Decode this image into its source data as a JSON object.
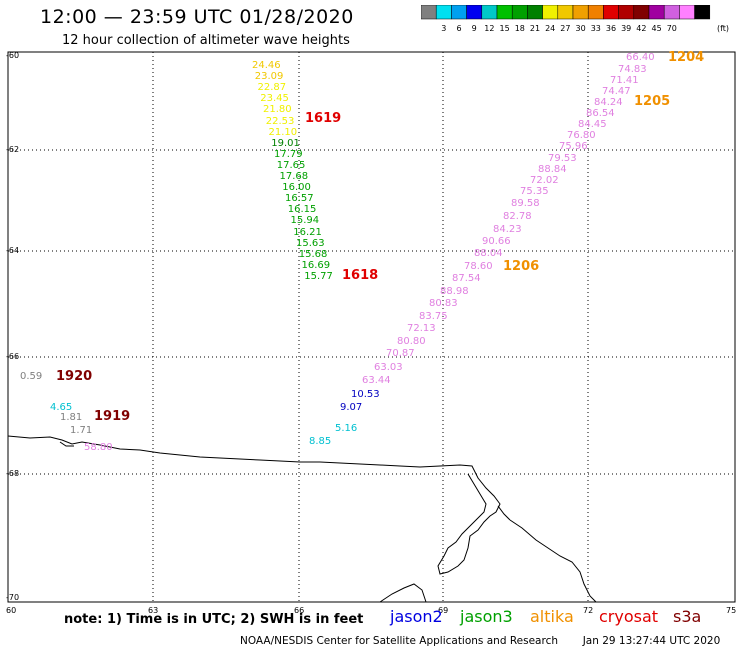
{
  "title": "12:00 — 23:59 UTC 01/28/2020",
  "subtitle": "12 hour collection of altimeter wave heights",
  "legend": {
    "colors": [
      "#808080",
      "#00e0f0",
      "#00a0f0",
      "#0000f0",
      "#00c8c8",
      "#00c000",
      "#00a000",
      "#008000",
      "#f0f000",
      "#f0c800",
      "#f0a000",
      "#f08000",
      "#e00000",
      "#b00000",
      "#800000",
      "#a000a0",
      "#d060e0",
      "#ff80ff",
      "#000000"
    ],
    "labels": [
      "3",
      "6",
      "9",
      "12",
      "15",
      "18",
      "21",
      "24",
      "27",
      "30",
      "33",
      "36",
      "39",
      "42",
      "45",
      "70"
    ],
    "unit": "(ft)"
  },
  "axes": {
    "y_labels": [
      "-60",
      "-62",
      "-64",
      "-66",
      "-68",
      "-70"
    ],
    "x_labels": [
      "60",
      "63",
      "66",
      "69",
      "72",
      "75"
    ]
  },
  "passes": [
    {
      "id": "1204",
      "color": "#f09000"
    },
    {
      "id": "1205",
      "color": "#f09000"
    },
    {
      "id": "1206",
      "color": "#f09000"
    },
    {
      "id": "1619",
      "color": "#e00000"
    },
    {
      "id": "1618",
      "color": "#e00000"
    },
    {
      "id": "1920",
      "color": "#800000"
    },
    {
      "id": "1919",
      "color": "#800000"
    }
  ],
  "measurements": [
    {
      "v": "24.46",
      "c": "#f0c800"
    },
    {
      "v": "23.09",
      "c": "#f0c800"
    },
    {
      "v": "22.87",
      "c": "#f0f000"
    },
    {
      "v": "23.45",
      "c": "#f0f000"
    },
    {
      "v": "21.80",
      "c": "#f0f000"
    },
    {
      "v": "22.53",
      "c": "#f0f000"
    },
    {
      "v": "21.10",
      "c": "#f0f000"
    },
    {
      "v": "19.01",
      "c": "#008000"
    },
    {
      "v": "17.79",
      "c": "#00a000"
    },
    {
      "v": "17.65",
      "c": "#00a000"
    },
    {
      "v": "17.68",
      "c": "#00a000"
    },
    {
      "v": "16.00",
      "c": "#00a000"
    },
    {
      "v": "16.57",
      "c": "#00a000"
    },
    {
      "v": "16.15",
      "c": "#00a000"
    },
    {
      "v": "15.94",
      "c": "#00a000"
    },
    {
      "v": "16.21",
      "c": "#00a000"
    },
    {
      "v": "15.63",
      "c": "#00a000"
    },
    {
      "v": "15.68",
      "c": "#00a000"
    },
    {
      "v": "16.69",
      "c": "#00a000"
    },
    {
      "v": "15.77",
      "c": "#00a000"
    },
    {
      "v": "66.40",
      "c": "#e080e0"
    },
    {
      "v": "74.83",
      "c": "#e080e0"
    },
    {
      "v": "71.41",
      "c": "#e080e0"
    },
    {
      "v": "74.47",
      "c": "#e080e0"
    },
    {
      "v": "84.24",
      "c": "#e080e0"
    },
    {
      "v": "86.54",
      "c": "#e080e0"
    },
    {
      "v": "84.45",
      "c": "#e080e0"
    },
    {
      "v": "76.80",
      "c": "#e080e0"
    },
    {
      "v": "75.96",
      "c": "#e080e0"
    },
    {
      "v": "79.53",
      "c": "#e080e0"
    },
    {
      "v": "88.84",
      "c": "#e080e0"
    },
    {
      "v": "72.02",
      "c": "#e080e0"
    },
    {
      "v": "75.35",
      "c": "#e080e0"
    },
    {
      "v": "89.58",
      "c": "#e080e0"
    },
    {
      "v": "82.78",
      "c": "#e080e0"
    },
    {
      "v": "84.23",
      "c": "#e080e0"
    },
    {
      "v": "90.66",
      "c": "#e080e0"
    },
    {
      "v": "88.04",
      "c": "#e080e0"
    },
    {
      "v": "78.60",
      "c": "#e080e0"
    },
    {
      "v": "87.54",
      "c": "#e080e0"
    },
    {
      "v": "88.98",
      "c": "#e080e0"
    },
    {
      "v": "80.83",
      "c": "#e080e0"
    },
    {
      "v": "83.75",
      "c": "#e080e0"
    },
    {
      "v": "72.13",
      "c": "#e080e0"
    },
    {
      "v": "80.80",
      "c": "#e080e0"
    },
    {
      "v": "70.87",
      "c": "#e080e0"
    },
    {
      "v": "63.03",
      "c": "#e080e0"
    },
    {
      "v": "63.44",
      "c": "#e080e0"
    },
    {
      "v": "10.53",
      "c": "#0000c0"
    },
    {
      "v": "9.07",
      "c": "#0000c0"
    },
    {
      "v": "5.16",
      "c": "#00c0d0"
    },
    {
      "v": "8.85",
      "c": "#00c0d0"
    },
    {
      "v": "0.59",
      "c": "#808080"
    },
    {
      "v": "4.65",
      "c": "#00c0d0"
    },
    {
      "v": "1.81",
      "c": "#808080"
    },
    {
      "v": "1.71",
      "c": "#808080"
    },
    {
      "v": "58.80",
      "c": "#e080e0"
    }
  ],
  "footer": {
    "note": "note:  1) Time is in UTC;  2) SWH is in feet",
    "satellites": [
      {
        "name": "jason2",
        "color": "#0000e0"
      },
      {
        "name": "jason3",
        "color": "#00a000"
      },
      {
        "name": "altika",
        "color": "#f09000"
      },
      {
        "name": "cryosat",
        "color": "#e00000"
      },
      {
        "name": "s3a",
        "color": "#800000"
      }
    ],
    "credit": "NOAA/NESDIS Center for Satellite Applications and Research",
    "timestamp": "Jan 29 13:27:44 UTC 2020"
  }
}
